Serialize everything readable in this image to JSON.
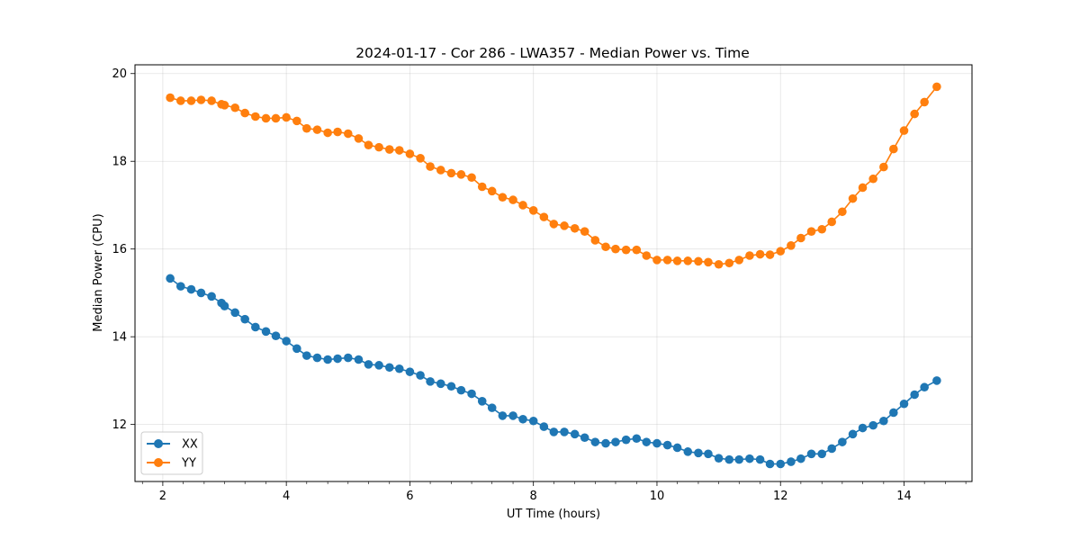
{
  "chart_data": {
    "type": "line",
    "title": "2024-01-17 - Cor 286 - LWA357 - Median Power vs. Time",
    "xlabel": "UT Time (hours)",
    "ylabel": "Median Power (CPU)",
    "xlim": [
      1.55,
      15.1
    ],
    "ylim": [
      10.7,
      20.2
    ],
    "xticks": [
      2,
      4,
      6,
      8,
      10,
      12,
      14
    ],
    "xtick_labels": [
      "2",
      "4",
      "6",
      "8",
      "10",
      "12",
      "14"
    ],
    "xminor": [
      1.67,
      2.33,
      2.67,
      3,
      3.33,
      3.67,
      4.33,
      4.67,
      5,
      5.33,
      5.67,
      6.33,
      6.67,
      7,
      7.33,
      7.67,
      8.33,
      8.67,
      9,
      9.33,
      9.67,
      10.33,
      10.67,
      11,
      11.33,
      11.67,
      12.33,
      12.67,
      13,
      13.33,
      13.67,
      14.33,
      14.67,
      15
    ],
    "yticks": [
      12,
      14,
      16,
      18,
      20
    ],
    "ytick_labels": [
      "12",
      "14",
      "16",
      "18",
      "20"
    ],
    "grid": true,
    "legend_position": "bottom-left",
    "x": [
      2.12,
      2.29,
      2.46,
      2.62,
      2.79,
      2.95,
      3.0,
      3.17,
      3.33,
      3.5,
      3.67,
      3.83,
      4.0,
      4.17,
      4.33,
      4.5,
      4.67,
      4.83,
      5.0,
      5.17,
      5.33,
      5.5,
      5.67,
      5.83,
      6.0,
      6.17,
      6.33,
      6.5,
      6.67,
      6.83,
      7.0,
      7.17,
      7.33,
      7.5,
      7.67,
      7.83,
      8.0,
      8.17,
      8.33,
      8.5,
      8.67,
      8.83,
      9.0,
      9.17,
      9.33,
      9.5,
      9.67,
      9.83,
      10.0,
      10.17,
      10.33,
      10.5,
      10.67,
      10.83,
      11.0,
      11.17,
      11.33,
      11.5,
      11.67,
      11.83,
      12.0,
      12.17,
      12.33,
      12.5,
      12.67,
      12.83,
      13.0,
      13.17,
      13.33,
      13.5,
      13.67,
      13.83,
      14.0,
      14.17,
      14.33,
      14.53
    ],
    "series": [
      {
        "name": "XX",
        "color": "#1f77b4",
        "values": [
          15.33,
          15.15,
          15.08,
          15.0,
          14.92,
          14.77,
          14.7,
          14.55,
          14.4,
          14.22,
          14.12,
          14.02,
          13.9,
          13.73,
          13.57,
          13.52,
          13.48,
          13.5,
          13.52,
          13.48,
          13.37,
          13.35,
          13.3,
          13.27,
          13.2,
          13.12,
          12.98,
          12.93,
          12.87,
          12.78,
          12.7,
          12.53,
          12.38,
          12.2,
          12.2,
          12.12,
          12.08,
          11.95,
          11.83,
          11.83,
          11.78,
          11.7,
          11.6,
          11.57,
          11.6,
          11.65,
          11.68,
          11.6,
          11.57,
          11.53,
          11.47,
          11.38,
          11.35,
          11.33,
          11.23,
          11.2,
          11.2,
          11.22,
          11.2,
          11.1,
          11.1,
          11.15,
          11.22,
          11.33,
          11.33,
          11.45,
          11.6,
          11.78,
          11.92,
          11.98,
          12.08,
          12.27,
          12.47,
          12.68,
          12.85,
          13.0
        ]
      },
      {
        "name": "YY",
        "color": "#ff7f0e",
        "values": [
          19.45,
          19.38,
          19.38,
          19.4,
          19.38,
          19.3,
          19.28,
          19.22,
          19.1,
          19.02,
          18.98,
          18.98,
          19.0,
          18.92,
          18.75,
          18.72,
          18.65,
          18.67,
          18.63,
          18.52,
          18.37,
          18.32,
          18.27,
          18.25,
          18.17,
          18.07,
          17.88,
          17.8,
          17.73,
          17.7,
          17.63,
          17.42,
          17.32,
          17.18,
          17.12,
          17.0,
          16.88,
          16.73,
          16.57,
          16.53,
          16.47,
          16.4,
          16.2,
          16.05,
          16.0,
          15.98,
          15.98,
          15.85,
          15.75,
          15.75,
          15.73,
          15.73,
          15.72,
          15.7,
          15.65,
          15.68,
          15.75,
          15.85,
          15.88,
          15.87,
          15.95,
          16.08,
          16.25,
          16.4,
          16.45,
          16.62,
          16.85,
          17.15,
          17.4,
          17.6,
          17.87,
          18.28,
          18.7,
          19.08,
          19.35,
          19.7
        ]
      }
    ]
  }
}
